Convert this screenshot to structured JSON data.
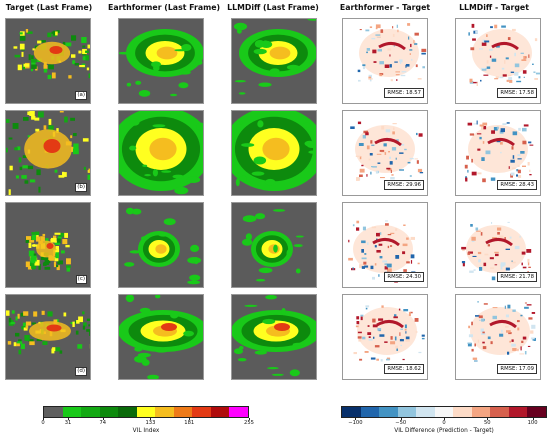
{
  "column_titles": [
    "Target (Last Frame)",
    "Earthformer (Last Frame)",
    "LLMDiff (Last Frame)",
    "Earthformer - Target",
    "LLMDiff - Target"
  ],
  "row_tags": [
    "(a)",
    "(b)",
    "(c)",
    "(d)"
  ],
  "rmse": {
    "earthformer": [
      "RMSE: 18.57",
      "RMSE: 29.96",
      "RMSE: 24.30",
      "RMSE: 18.62"
    ],
    "llmdiff": [
      "RMSE: 17.58",
      "RMSE: 28.43",
      "RMSE: 21.78",
      "RMSE: 17.09"
    ]
  },
  "vil_colorbar": {
    "label": "VIL Index",
    "ticks": [
      "0",
      "31",
      "74",
      "133",
      "181",
      "255"
    ],
    "colors": [
      "#5f5f5f",
      "#19c919",
      "#13a913",
      "#0d8a0d",
      "#0a6a0a",
      "#ffff20",
      "#f5bd1f",
      "#ee7a18",
      "#e33a14",
      "#b00c0c",
      "#ff00ff"
    ]
  },
  "diff_colorbar": {
    "label": "VIL Difference (Prediction - Target)",
    "ticks": [
      "−100",
      "−50",
      "0",
      "50",
      "100"
    ],
    "colors": [
      "#08306b",
      "#2166ac",
      "#4393c3",
      "#92c5de",
      "#d1e5f0",
      "#f7f7f7",
      "#fddbc7",
      "#f4a582",
      "#d6604d",
      "#b2182b",
      "#67001f"
    ]
  }
}
